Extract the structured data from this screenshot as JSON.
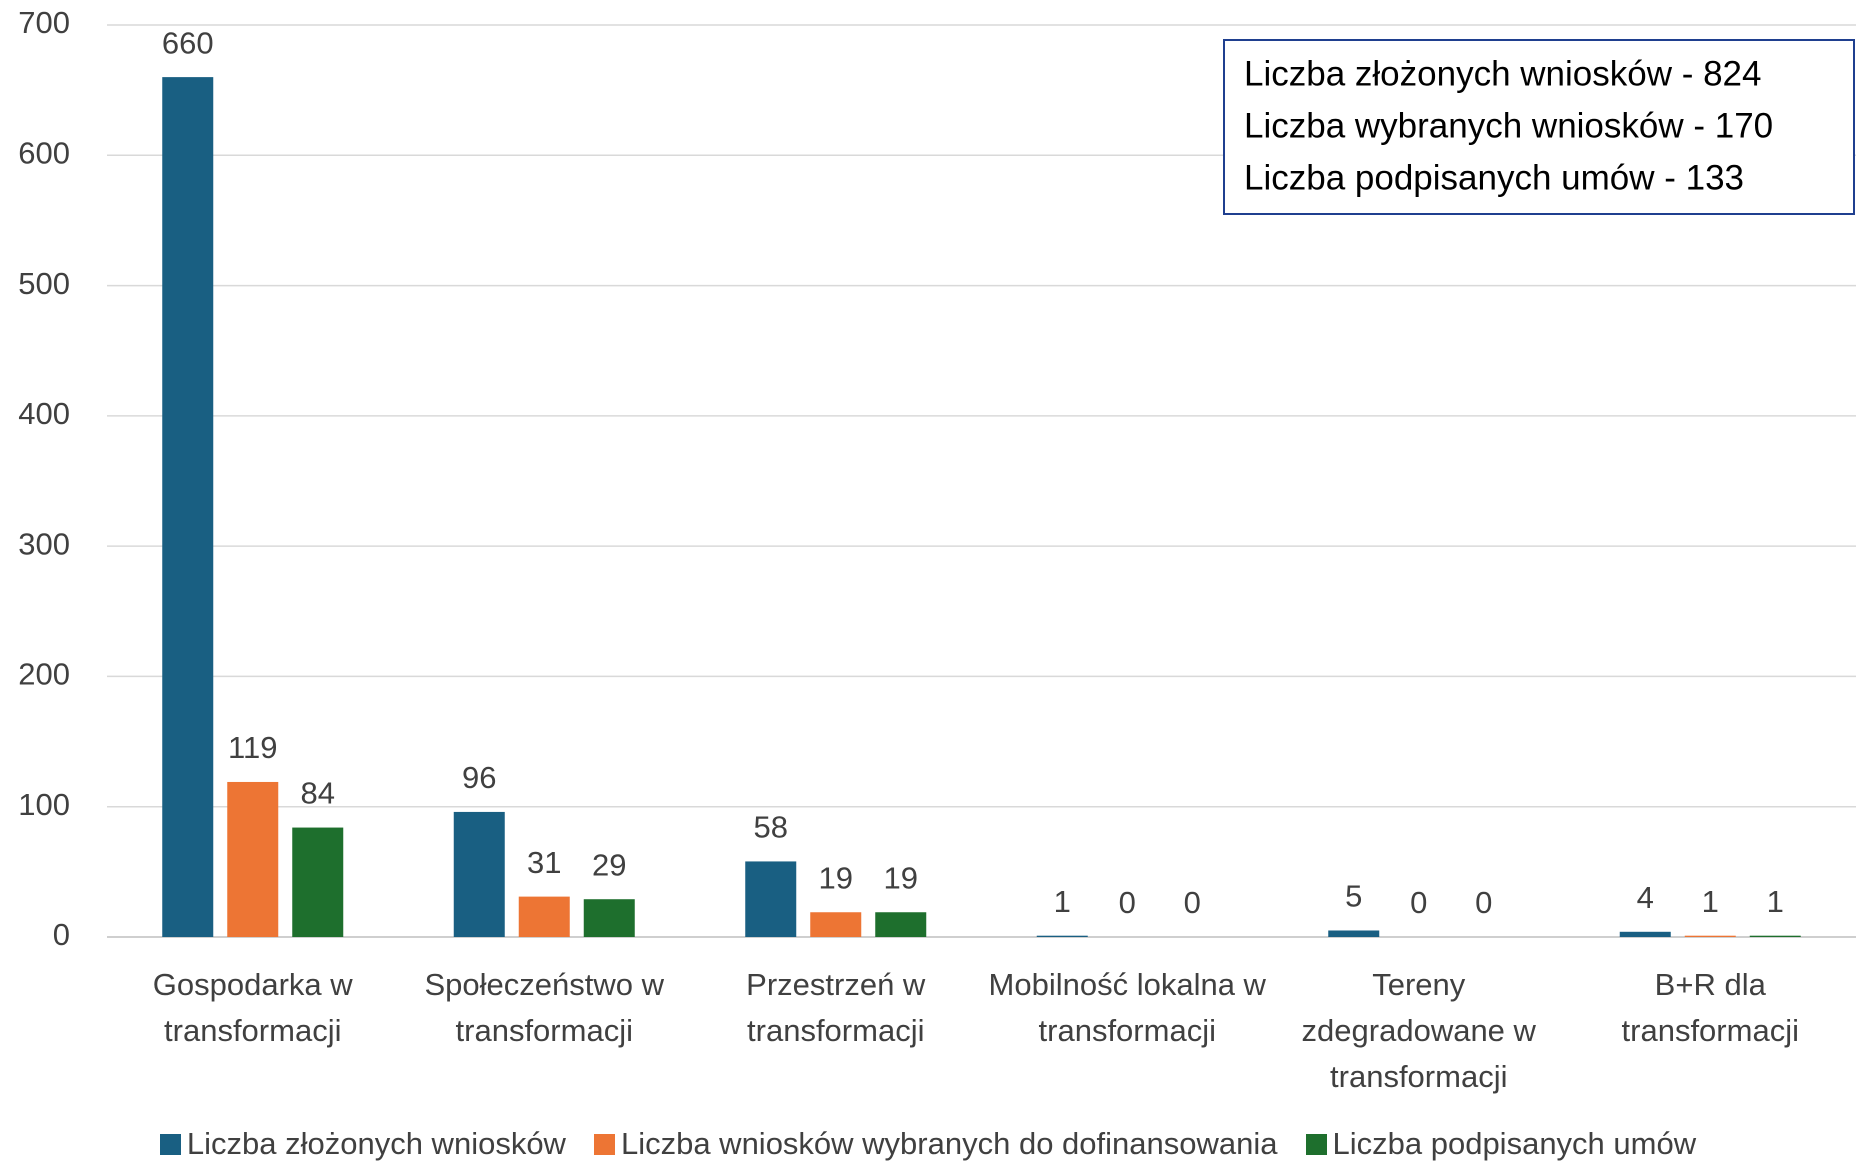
{
  "chart_data": {
    "type": "bar",
    "categories": [
      "Gospodarka w transformacji",
      "Społeczeństwo w transformacji",
      "Przestrzeń w transformacji",
      "Mobilność lokalna w transformacji",
      "Tereny zdegradowane w transformacji",
      "B+R dla transformacji"
    ],
    "series": [
      {
        "name": "Liczba złożonych wniosków",
        "color": "#195f82",
        "values": [
          660,
          96,
          58,
          1,
          5,
          4
        ]
      },
      {
        "name": "Liczba wniosków wybranych do dofinansowania",
        "color": "#ed7534",
        "values": [
          119,
          31,
          19,
          0,
          0,
          1
        ]
      },
      {
        "name": "Liczba podpisanych umów",
        "color": "#1e6f2d",
        "values": [
          84,
          29,
          19,
          0,
          0,
          1
        ]
      }
    ],
    "ylim": [
      0,
      700
    ],
    "yticks": [
      0,
      100,
      200,
      300,
      400,
      500,
      600,
      700
    ],
    "grid": true,
    "legend": "bottom",
    "annotations": [
      "Liczba złożonych wniosków - 824",
      "Liczba wybranych wniosków - 170",
      "Liczba podpisanych umów - 133"
    ]
  }
}
